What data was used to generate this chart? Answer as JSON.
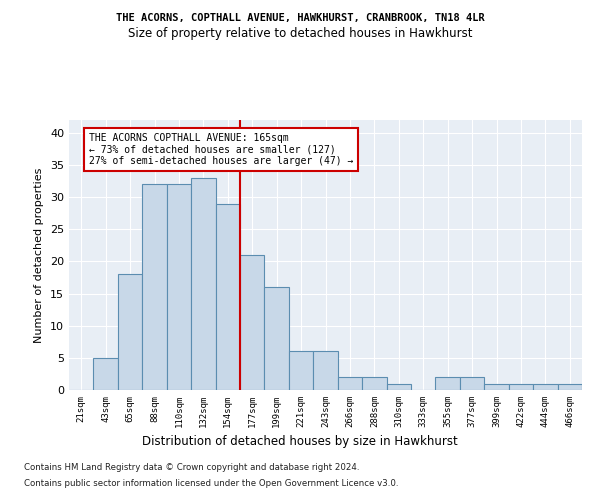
{
  "title1": "THE ACORNS, COPTHALL AVENUE, HAWKHURST, CRANBROOK, TN18 4LR",
  "title2": "Size of property relative to detached houses in Hawkhurst",
  "xlabel": "Distribution of detached houses by size in Hawkhurst",
  "ylabel": "Number of detached properties",
  "footnote1": "Contains HM Land Registry data © Crown copyright and database right 2024.",
  "footnote2": "Contains public sector information licensed under the Open Government Licence v3.0.",
  "bin_labels": [
    "21sqm",
    "43sqm",
    "65sqm",
    "88sqm",
    "110sqm",
    "132sqm",
    "154sqm",
    "177sqm",
    "199sqm",
    "221sqm",
    "243sqm",
    "266sqm",
    "288sqm",
    "310sqm",
    "333sqm",
    "355sqm",
    "377sqm",
    "399sqm",
    "422sqm",
    "444sqm",
    "466sqm"
  ],
  "bar_values": [
    0,
    5,
    18,
    32,
    32,
    33,
    29,
    21,
    16,
    6,
    6,
    2,
    2,
    1,
    0,
    2,
    2,
    1,
    1,
    1,
    1
  ],
  "bar_color": "#c8d8e8",
  "bar_edge_color": "#5b8db0",
  "annotation_text": "THE ACORNS COPTHALL AVENUE: 165sqm\n← 73% of detached houses are smaller (127)\n27% of semi-detached houses are larger (47) →",
  "ylim": [
    0,
    42
  ],
  "yticks": [
    0,
    5,
    10,
    15,
    20,
    25,
    30,
    35,
    40
  ],
  "plot_bg_color": "#e8eef5"
}
